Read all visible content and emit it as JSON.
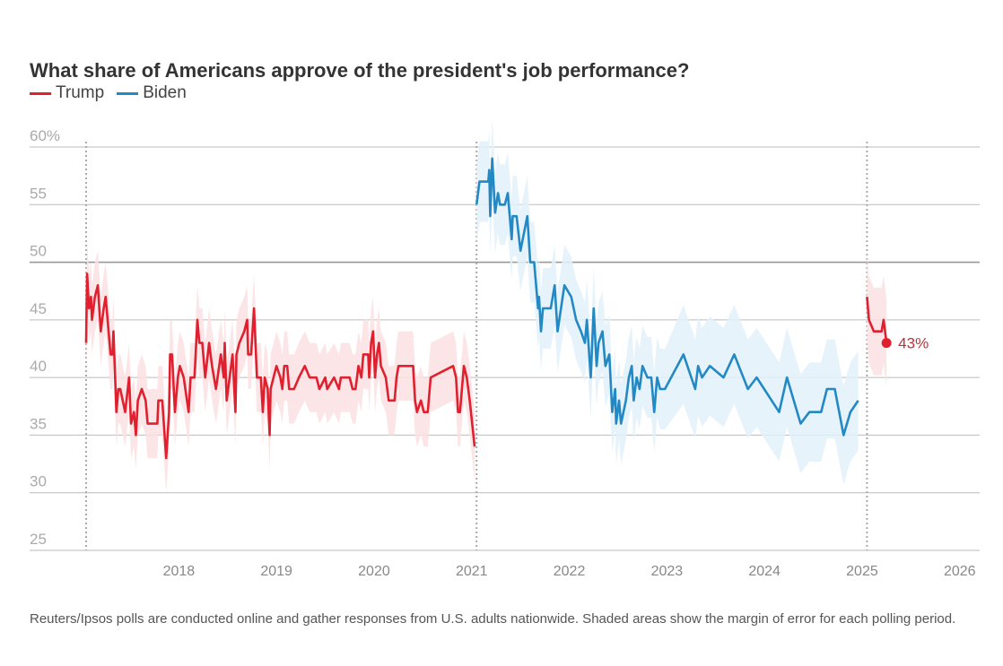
{
  "chart_data": {
    "type": "line",
    "title": "What share of Americans approve of the president's job performance?",
    "xlabel": "",
    "ylabel": "",
    "ylim": [
      25,
      60
    ],
    "xlim": [
      2017.0,
      2026.2
    ],
    "y_ticks": [
      "60%",
      "55",
      "50",
      "45",
      "40",
      "35",
      "30",
      "25"
    ],
    "y_tick_values": [
      60,
      55,
      50,
      45,
      40,
      35,
      30,
      25
    ],
    "x_ticks": [
      "2018",
      "2019",
      "2020",
      "2021",
      "2022",
      "2023",
      "2024",
      "2025",
      "2026"
    ],
    "x_tick_values": [
      2018,
      2019,
      2020,
      2021,
      2022,
      2023,
      2024,
      2025,
      2026
    ],
    "grid": true,
    "legend_position": "top-left",
    "inauguration_markers": [
      2017.05,
      2021.05,
      2025.05
    ],
    "end_label": "43%",
    "series": [
      {
        "name": "Trump",
        "color": "#e0202e",
        "band_color": "#fbe0e2",
        "margin_of_error": 3,
        "points": [
          [
            2017.05,
            43
          ],
          [
            2017.06,
            49
          ],
          [
            2017.08,
            46
          ],
          [
            2017.1,
            47
          ],
          [
            2017.11,
            45
          ],
          [
            2017.14,
            47
          ],
          [
            2017.17,
            48
          ],
          [
            2017.2,
            44
          ],
          [
            2017.23,
            46
          ],
          [
            2017.25,
            47
          ],
          [
            2017.27,
            45
          ],
          [
            2017.3,
            42
          ],
          [
            2017.32,
            42
          ],
          [
            2017.33,
            44
          ],
          [
            2017.36,
            37
          ],
          [
            2017.38,
            39
          ],
          [
            2017.4,
            39
          ],
          [
            2017.45,
            37
          ],
          [
            2017.49,
            40
          ],
          [
            2017.51,
            36
          ],
          [
            2017.54,
            37
          ],
          [
            2017.56,
            35
          ],
          [
            2017.58,
            38
          ],
          [
            2017.62,
            39
          ],
          [
            2017.66,
            38
          ],
          [
            2017.68,
            36
          ],
          [
            2017.78,
            36
          ],
          [
            2017.79,
            38
          ],
          [
            2017.83,
            38
          ],
          [
            2017.87,
            33
          ],
          [
            2017.9,
            37
          ],
          [
            2017.91,
            42
          ],
          [
            2017.93,
            42
          ],
          [
            2017.96,
            37
          ],
          [
            2017.99,
            40
          ],
          [
            2018.01,
            41
          ],
          [
            2018.05,
            40
          ],
          [
            2018.1,
            37
          ],
          [
            2018.12,
            40
          ],
          [
            2018.16,
            40
          ],
          [
            2018.19,
            45
          ],
          [
            2018.21,
            43
          ],
          [
            2018.24,
            43
          ],
          [
            2018.27,
            40
          ],
          [
            2018.31,
            43
          ],
          [
            2018.34,
            41
          ],
          [
            2018.38,
            39
          ],
          [
            2018.43,
            42
          ],
          [
            2018.46,
            40
          ],
          [
            2018.47,
            43
          ],
          [
            2018.49,
            38
          ],
          [
            2018.55,
            42
          ],
          [
            2018.58,
            37
          ],
          [
            2018.59,
            42
          ],
          [
            2018.62,
            43
          ],
          [
            2018.67,
            44
          ],
          [
            2018.7,
            45
          ],
          [
            2018.71,
            42
          ],
          [
            2018.74,
            42
          ],
          [
            2018.77,
            46
          ],
          [
            2018.8,
            40
          ],
          [
            2018.84,
            40
          ],
          [
            2018.86,
            37
          ],
          [
            2018.88,
            40
          ],
          [
            2018.91,
            39
          ],
          [
            2018.93,
            35
          ],
          [
            2018.94,
            39
          ],
          [
            2018.97,
            40
          ],
          [
            2019.0,
            41
          ],
          [
            2019.04,
            40
          ],
          [
            2019.06,
            39
          ],
          [
            2019.08,
            41
          ],
          [
            2019.11,
            41
          ],
          [
            2019.13,
            39
          ],
          [
            2019.18,
            39
          ],
          [
            2019.23,
            40
          ],
          [
            2019.29,
            41
          ],
          [
            2019.34,
            40
          ],
          [
            2019.41,
            40
          ],
          [
            2019.44,
            39
          ],
          [
            2019.5,
            40
          ],
          [
            2019.52,
            39
          ],
          [
            2019.59,
            40
          ],
          [
            2019.64,
            39
          ],
          [
            2019.66,
            40
          ],
          [
            2019.75,
            40
          ],
          [
            2019.78,
            39
          ],
          [
            2019.81,
            39
          ],
          [
            2019.84,
            41
          ],
          [
            2019.87,
            40
          ],
          [
            2019.89,
            42
          ],
          [
            2019.94,
            42
          ],
          [
            2019.95,
            40
          ],
          [
            2019.97,
            43
          ],
          [
            2019.99,
            44
          ],
          [
            2020.01,
            40
          ],
          [
            2020.03,
            42
          ],
          [
            2020.05,
            43
          ],
          [
            2020.07,
            41
          ],
          [
            2020.12,
            40
          ],
          [
            2020.15,
            38
          ],
          [
            2020.21,
            38
          ],
          [
            2020.23,
            40
          ],
          [
            2020.25,
            41
          ],
          [
            2020.4,
            41
          ],
          [
            2020.42,
            38
          ],
          [
            2020.44,
            37
          ],
          [
            2020.48,
            38
          ],
          [
            2020.51,
            37
          ],
          [
            2020.55,
            37
          ],
          [
            2020.58,
            40
          ],
          [
            2020.81,
            41
          ],
          [
            2020.84,
            40
          ],
          [
            2020.86,
            37
          ],
          [
            2020.88,
            37
          ],
          [
            2020.92,
            41
          ],
          [
            2020.95,
            40
          ],
          [
            2020.98,
            38
          ],
          [
            2021.03,
            34
          ]
        ]
      },
      {
        "name": "Biden",
        "color": "#2289c4",
        "band_color": "#e3f1fa",
        "margin_of_error": 3.5,
        "points": [
          [
            2021.05,
            55
          ],
          [
            2021.08,
            57
          ],
          [
            2021.17,
            57
          ],
          [
            2021.18,
            58
          ],
          [
            2021.19,
            54
          ],
          [
            2021.21,
            59
          ],
          [
            2021.24,
            54.3
          ],
          [
            2021.27,
            56
          ],
          [
            2021.29,
            55
          ],
          [
            2021.34,
            55
          ],
          [
            2021.37,
            56
          ],
          [
            2021.41,
            52
          ],
          [
            2021.42,
            54
          ],
          [
            2021.46,
            54
          ],
          [
            2021.5,
            51
          ],
          [
            2021.57,
            54
          ],
          [
            2021.6,
            50
          ],
          [
            2021.64,
            50
          ],
          [
            2021.68,
            46
          ],
          [
            2021.69,
            47
          ],
          [
            2021.71,
            44
          ],
          [
            2021.73,
            46
          ],
          [
            2021.81,
            46
          ],
          [
            2021.85,
            48
          ],
          [
            2021.88,
            44
          ],
          [
            2021.95,
            48
          ],
          [
            2022.02,
            47
          ],
          [
            2022.07,
            45
          ],
          [
            2022.12,
            44
          ],
          [
            2022.16,
            43
          ],
          [
            2022.18,
            45
          ],
          [
            2022.22,
            40
          ],
          [
            2022.25,
            46
          ],
          [
            2022.28,
            41
          ],
          [
            2022.3,
            43
          ],
          [
            2022.34,
            44
          ],
          [
            2022.37,
            41
          ],
          [
            2022.41,
            42
          ],
          [
            2022.44,
            37
          ],
          [
            2022.47,
            39
          ],
          [
            2022.48,
            36
          ],
          [
            2022.51,
            38
          ],
          [
            2022.53,
            36
          ],
          [
            2022.58,
            38
          ],
          [
            2022.61,
            40
          ],
          [
            2022.64,
            41
          ],
          [
            2022.66,
            38
          ],
          [
            2022.69,
            40
          ],
          [
            2022.72,
            39
          ],
          [
            2022.75,
            41
          ],
          [
            2022.8,
            40
          ],
          [
            2022.84,
            40
          ],
          [
            2022.87,
            37
          ],
          [
            2022.9,
            40
          ],
          [
            2022.93,
            39
          ],
          [
            2022.98,
            39
          ],
          [
            2023.17,
            42
          ],
          [
            2023.29,
            39
          ],
          [
            2023.32,
            41
          ],
          [
            2023.36,
            40
          ],
          [
            2023.44,
            41
          ],
          [
            2023.58,
            40
          ],
          [
            2023.69,
            42
          ],
          [
            2023.83,
            39
          ],
          [
            2023.92,
            40
          ],
          [
            2024.15,
            37
          ],
          [
            2024.23,
            40
          ],
          [
            2024.37,
            36
          ],
          [
            2024.46,
            37
          ],
          [
            2024.58,
            37
          ],
          [
            2024.64,
            39
          ],
          [
            2024.72,
            39
          ],
          [
            2024.81,
            35
          ],
          [
            2024.88,
            37
          ],
          [
            2024.96,
            38
          ]
        ]
      },
      {
        "name": "Trump",
        "color": "#e0202e",
        "band_color": "#fbe0e2",
        "margin_of_error": 3,
        "points": [
          [
            2025.05,
            47
          ],
          [
            2025.07,
            45
          ],
          [
            2025.12,
            44
          ],
          [
            2025.2,
            44
          ],
          [
            2025.22,
            45
          ],
          [
            2025.25,
            43
          ]
        ]
      }
    ]
  },
  "legend": [
    {
      "label": "Trump",
      "color": "#e0202e"
    },
    {
      "label": "Biden",
      "color": "#2289c4"
    }
  ],
  "footer": "Reuters/Ipsos polls are conducted online and gather responses from U.S. adults nationwide. Shaded areas show the margin of error for each polling period."
}
